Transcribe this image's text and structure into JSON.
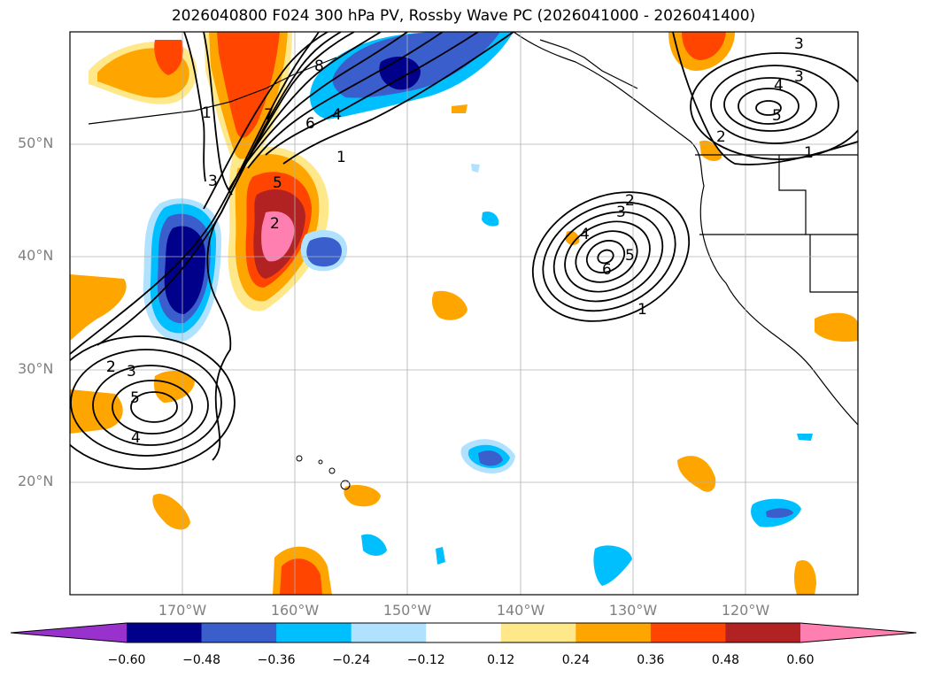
{
  "title": "2026040800 F024 300 hPa PV, Rossby Wave PC (2026041000 - 2026041400)",
  "lat_labels": [
    "50°N",
    "40°N",
    "30°N",
    "20°N"
  ],
  "lon_labels": [
    "170°W",
    "160°W",
    "150°W",
    "140°W",
    "130°W",
    "120°W"
  ],
  "colorbar": {
    "ticks": [
      "−0.60",
      "−0.48",
      "−0.36",
      "−0.24",
      "−0.12",
      "0.12",
      "0.24",
      "0.36",
      "0.48",
      "0.60"
    ],
    "colors": [
      "#9932cc",
      "#00008b",
      "#3a5fcd",
      "#00bfff",
      "#b0e2ff",
      "#ffffff",
      "#ffe88a",
      "#ffa500",
      "#ff4500",
      "#b22222",
      "#ff7fb0"
    ]
  },
  "contour_labels": [
    "1",
    "3",
    "2",
    "6",
    "4",
    "1",
    "8",
    "7",
    "2",
    "3",
    "2",
    "3",
    "4",
    "5",
    "6",
    "5",
    "1",
    "2",
    "3",
    "5",
    "4",
    "3",
    "4",
    "5",
    "2",
    "1"
  ]
}
